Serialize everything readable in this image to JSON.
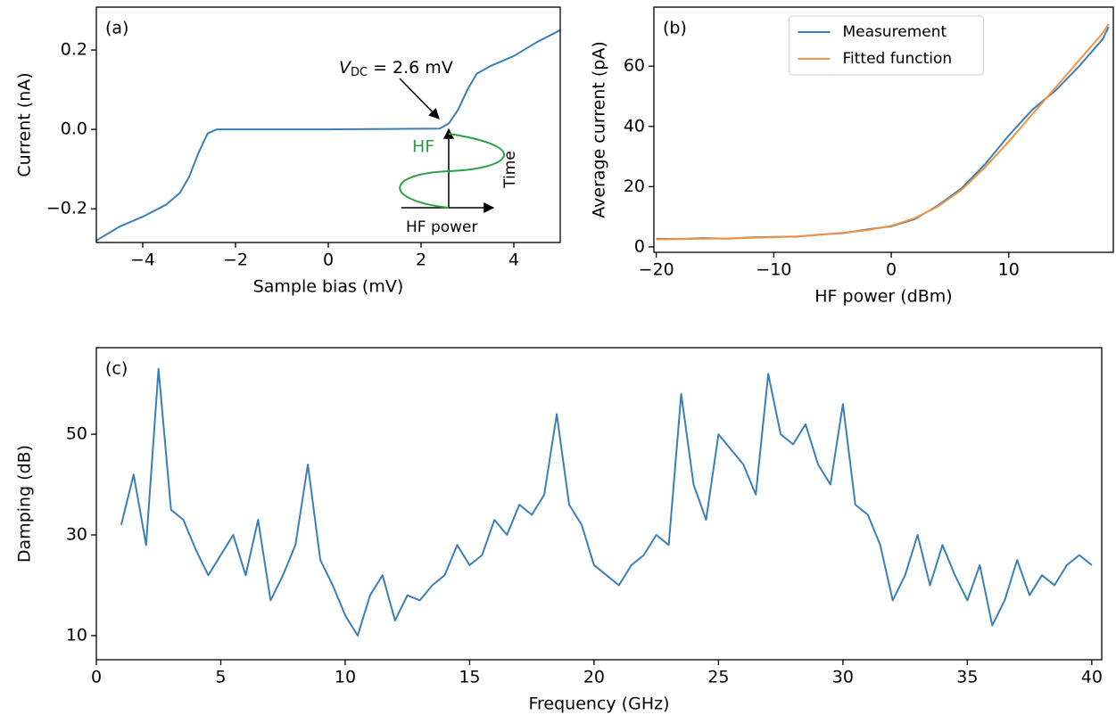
{
  "chart_data": [
    {
      "type": "line",
      "panel_label": "(a)",
      "xlabel": "Sample bias (mV)",
      "ylabel": "Current (nA)",
      "annotation": {
        "symbol": "V",
        "subscript": "DC",
        "text": "= 2.6 mV"
      },
      "inset": {
        "signal": "HF",
        "axis_x": "HF power",
        "axis_y": "Time"
      },
      "x": [
        -5,
        -4.5,
        -4,
        -3.5,
        -3.2,
        -3,
        -2.8,
        -2.6,
        -2.4,
        0,
        2.4,
        2.6,
        2.8,
        3,
        3.2,
        3.5,
        4,
        4.5,
        5
      ],
      "values": [
        -0.28,
        -0.245,
        -0.22,
        -0.19,
        -0.16,
        -0.12,
        -0.06,
        -0.01,
        0,
        0,
        0.002,
        0.015,
        0.05,
        0.1,
        0.14,
        0.16,
        0.185,
        0.22,
        0.25
      ],
      "color": "#3a7fb8",
      "xlim": [
        -5,
        5
      ],
      "xticks": [
        {
          "value": -4,
          "label": "−4"
        },
        {
          "value": -2,
          "label": "−2"
        },
        0,
        2,
        4
      ],
      "ylim": [
        -0.285,
        0.308
      ],
      "yticks": [
        {
          "value": -0.2,
          "label": "−0.2"
        },
        {
          "value": 0,
          "label": "0.0"
        },
        {
          "value": 0.2,
          "label": "0.2"
        }
      ]
    },
    {
      "type": "line",
      "panel_label": "(b)",
      "xlabel": "HF power (dBm)",
      "ylabel": "Average current (pA)",
      "legend": "upper center",
      "x": [
        -20,
        -18,
        -16,
        -14,
        -12,
        -10,
        -8,
        -6,
        -4,
        -2,
        0,
        2,
        4,
        6,
        8,
        10,
        12,
        14,
        16,
        18,
        18.5
      ],
      "series": [
        {
          "name": "Measurement",
          "color": "#3a7fb8",
          "values": [
            2.7,
            2.6,
            2.9,
            2.7,
            3.1,
            3.3,
            3.4,
            4.1,
            4.6,
            5.8,
            6.8,
            9.2,
            13.8,
            19.5,
            27.5,
            37,
            45.5,
            52,
            60,
            69,
            73
          ]
        },
        {
          "name": "Fitted function",
          "color": "#f5913e",
          "values": [
            2.5,
            2.6,
            2.7,
            2.8,
            3.0,
            3.2,
            3.5,
            4.0,
            4.7,
            5.6,
            7.0,
            9.5,
            13.5,
            19,
            26.5,
            35,
            44,
            53,
            62,
            71,
            74
          ]
        }
      ],
      "xlim": [
        -20.2,
        18.9
      ],
      "xticks": [
        {
          "value": -20,
          "label": "−20"
        },
        {
          "value": -10,
          "label": "−10"
        },
        0,
        10
      ],
      "ylim": [
        -1.8,
        79.6
      ],
      "yticks": [
        0,
        20,
        40,
        60
      ]
    },
    {
      "type": "line",
      "panel_label": "(c)",
      "xlabel": "Frequency (GHz)",
      "ylabel": "Damping (dB)",
      "x": [
        1,
        1.5,
        2,
        2.5,
        3,
        3.5,
        4,
        4.5,
        5,
        5.5,
        6,
        6.5,
        7,
        7.5,
        8,
        8.5,
        9,
        9.5,
        10,
        10.5,
        11,
        11.5,
        12,
        12.5,
        13,
        13.5,
        14,
        14.5,
        15,
        15.5,
        16,
        16.5,
        17,
        17.5,
        18,
        18.5,
        19,
        19.5,
        20,
        20.5,
        21,
        21.5,
        22,
        22.5,
        23,
        23.5,
        24,
        24.5,
        25,
        25.5,
        26,
        26.5,
        27,
        27.5,
        28,
        28.5,
        29,
        29.5,
        30,
        30.5,
        31,
        31.5,
        32,
        32.5,
        33,
        33.5,
        34,
        34.5,
        35,
        35.5,
        36,
        36.5,
        37,
        37.5,
        38,
        38.5,
        39,
        39.5,
        40
      ],
      "values": [
        32,
        42,
        28,
        63,
        35,
        33,
        27,
        22,
        26,
        30,
        22,
        33,
        17,
        22,
        28,
        44,
        25,
        20,
        14,
        10,
        18,
        22,
        13,
        18,
        17,
        20,
        22,
        28,
        24,
        26,
        33,
        30,
        36,
        34,
        38,
        54,
        36,
        32,
        24,
        22,
        20,
        24,
        26,
        30,
        28,
        58,
        40,
        33,
        50,
        47,
        44,
        38,
        62,
        50,
        48,
        52,
        44,
        40,
        56,
        36,
        34,
        28,
        17,
        22,
        30,
        20,
        28,
        22,
        17,
        24,
        12,
        17,
        25,
        18,
        22,
        20,
        24,
        26,
        24
      ],
      "color": "#3a7fb8",
      "xlim": [
        0,
        40.4
      ],
      "xticks": [
        0,
        5,
        10,
        15,
        20,
        25,
        30,
        35,
        40
      ],
      "ylim": [
        5.2,
        67.2
      ],
      "yticks": [
        10,
        30,
        50
      ]
    }
  ]
}
